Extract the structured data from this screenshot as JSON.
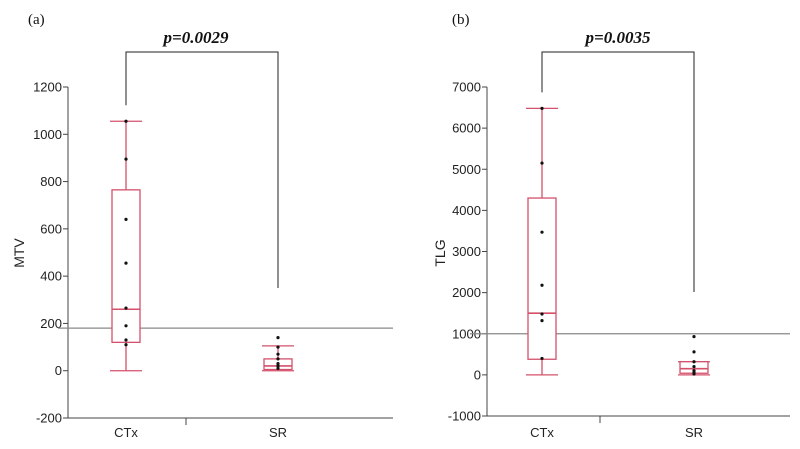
{
  "colors": {
    "box": "#d4506b",
    "axis": "#444444",
    "threshold": "#888888",
    "point": "#111111"
  },
  "chart_data": [
    {
      "type": "box",
      "panel_label": "(a)",
      "ylabel": "MTV",
      "categories": [
        "CTx",
        "SR"
      ],
      "ylim": [
        -200,
        1200
      ],
      "yticks": [
        -200,
        0,
        200,
        400,
        600,
        800,
        1000,
        1200
      ],
      "threshold": 180,
      "p_value_label": "p=0.0029",
      "boxes": [
        {
          "category": "CTx",
          "min": 0,
          "q1": 120,
          "median": 260,
          "q3": 765,
          "max": 1055
        },
        {
          "category": "SR",
          "min": 0,
          "q1": 5,
          "median": 20,
          "q3": 50,
          "max": 105
        }
      ],
      "points": [
        {
          "category": "CTx",
          "values": [
            1055,
            895,
            640,
            455,
            265,
            190,
            130,
            110
          ]
        },
        {
          "category": "SR",
          "values": [
            140,
            100,
            70,
            50,
            30,
            20,
            10
          ]
        }
      ]
    },
    {
      "type": "box",
      "panel_label": "(b)",
      "ylabel": "TLG",
      "categories": [
        "CTx",
        "SR"
      ],
      "ylim": [
        -1000,
        7000
      ],
      "yticks": [
        -1000,
        0,
        1000,
        2000,
        3000,
        4000,
        5000,
        6000,
        7000
      ],
      "threshold": 1000,
      "p_value_label": "p=0.0035",
      "boxes": [
        {
          "category": "CTx",
          "min": 0,
          "q1": 380,
          "median": 1500,
          "q3": 4300,
          "max": 6480
        },
        {
          "category": "SR",
          "min": 0,
          "q1": 40,
          "median": 150,
          "q3": 320,
          "max": 320
        }
      ],
      "points": [
        {
          "category": "CTx",
          "values": [
            6480,
            5150,
            3470,
            2180,
            1480,
            1320,
            400
          ]
        },
        {
          "category": "SR",
          "values": [
            930,
            560,
            320,
            200,
            100,
            50,
            20
          ]
        }
      ]
    }
  ]
}
